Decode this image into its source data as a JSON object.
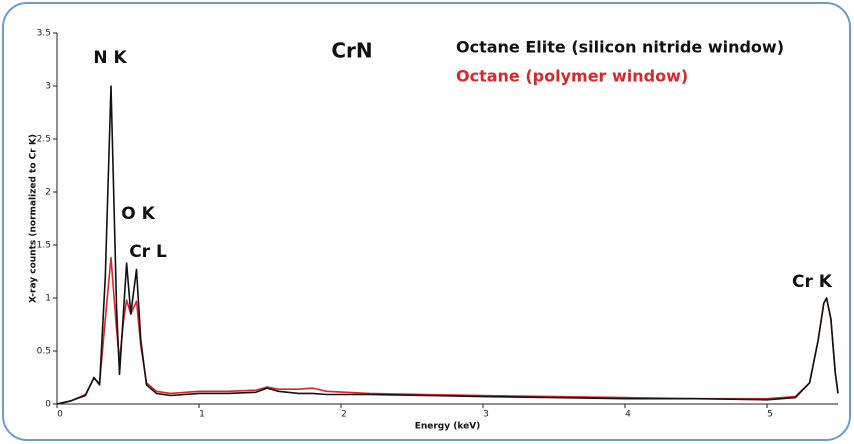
{
  "chart_data": {
    "type": "line",
    "title": "CrN",
    "x_label": "Energy (keV)",
    "y_label": "X-ray counts (normalized to Cr K)",
    "annotations": [
      "N K",
      "O K",
      "Cr L",
      "Cr K"
    ],
    "x": [
      0,
      0.1,
      0.2,
      0.26,
      0.3,
      0.34,
      0.38,
      0.42,
      0.44,
      0.47,
      0.49,
      0.52,
      0.56,
      0.59,
      0.63,
      0.7,
      0.8,
      1.0,
      1.2,
      1.4,
      1.48,
      1.56,
      1.7,
      1.8,
      1.9,
      2.2,
      2.6,
      3.0,
      3.5,
      4.0,
      4.5,
      5.0,
      5.2,
      5.3,
      5.36,
      5.4,
      5.42,
      5.45,
      5.48,
      5.5
    ],
    "series": [
      {
        "name": "Octane Elite (silicon nitride window)",
        "color": "#111111",
        "values": [
          0,
          0.03,
          0.08,
          0.25,
          0.18,
          1.2,
          3.0,
          0.9,
          0.28,
          0.9,
          1.33,
          0.85,
          1.27,
          0.6,
          0.18,
          0.1,
          0.08,
          0.1,
          0.1,
          0.11,
          0.15,
          0.12,
          0.1,
          0.1,
          0.09,
          0.09,
          0.08,
          0.07,
          0.06,
          0.05,
          0.05,
          0.04,
          0.06,
          0.2,
          0.6,
          0.95,
          1.0,
          0.8,
          0.3,
          0.1
        ]
      },
      {
        "name": "Octane (polymer window)",
        "color": "#d9262b",
        "values": [
          0,
          0.03,
          0.09,
          0.24,
          0.2,
          0.8,
          1.38,
          0.7,
          0.4,
          0.8,
          0.98,
          0.85,
          0.97,
          0.55,
          0.2,
          0.12,
          0.1,
          0.12,
          0.12,
          0.13,
          0.16,
          0.14,
          0.14,
          0.15,
          0.12,
          0.1,
          0.09,
          0.08,
          0.07,
          0.06,
          0.05,
          0.05,
          0.07,
          0.2,
          0.6,
          0.95,
          1.0,
          0.8,
          0.3,
          0.1
        ]
      }
    ],
    "xlim": [
      0,
      5.5
    ],
    "xticks": [
      0,
      1,
      2,
      3,
      4,
      5
    ],
    "ylim": [
      0,
      3.5
    ],
    "yticks": [
      0,
      0.5,
      1,
      1.5,
      2,
      2.5,
      3,
      3.5
    ]
  }
}
